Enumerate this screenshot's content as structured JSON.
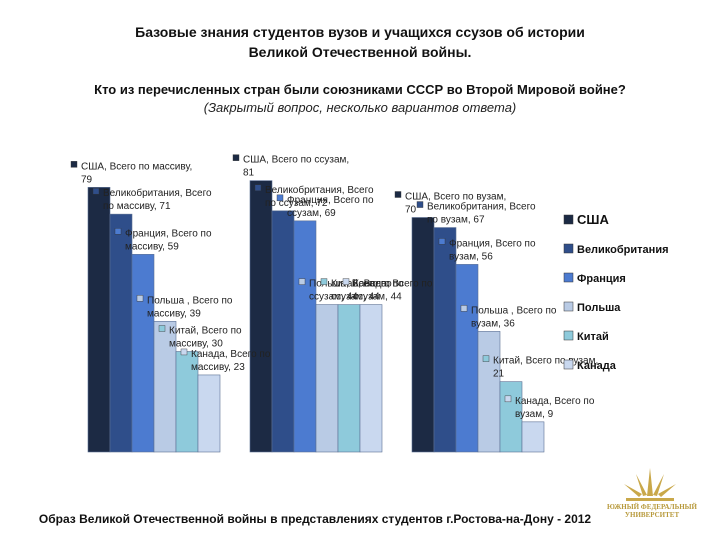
{
  "page": {
    "title_line1": "Базовые знания  студентов вузов  и учащихся ссузов об истории",
    "title_line2": "Великой Отечественной войны.",
    "question": "Кто из перечисленных стран были союзниками СССР во Второй Мировой войне?",
    "subquestion": "(Закрытый вопрос, несколько вариантов ответа)",
    "footer": "Образ Великой Отечественной войны в представлениях студентов г.Ростова-на-Дону - 2012",
    "logo_text": "ЮЖНЫЙ ФЕДЕРАЛЬНЫЙ УНИВЕРСИТЕТ"
  },
  "chart_data": {
    "type": "bar",
    "title": "Кто из перечисленных стран были союзниками СССР во Второй Мировой войне?",
    "categories": [
      "Всего по массиву",
      "Всего по ссузам",
      "Всего по вузам"
    ],
    "ylim": [
      0,
      100
    ],
    "grid": false,
    "legend_position": "right",
    "series": [
      {
        "name": "США",
        "color": "#1c2a44",
        "values": [
          79,
          81,
          70
        ],
        "labels": [
          "США, Всего по массиву, 79",
          "США, Всего по ссузам, 81",
          "США, Всего по вузам, 70"
        ]
      },
      {
        "name": "Великобритания",
        "color": "#2f4e8a",
        "values": [
          71,
          72,
          67
        ],
        "labels": [
          "Великобритания, Всего по массиву, 71",
          "Великобритания, Всего по ссузам, 72",
          "Великобритания, Всего по вузам, 67"
        ]
      },
      {
        "name": "Франция",
        "color": "#4c7bd0",
        "values": [
          59,
          69,
          56
        ],
        "labels": [
          "Франция, Всего по массиву, 59",
          "Франция, Всего по ссузам, 69",
          "Франция, Всего по вузам, 56"
        ]
      },
      {
        "name": "Польша",
        "color": "#b9cbe5",
        "values": [
          39,
          44,
          36
        ],
        "labels": [
          "Польша , Всего по массиву, 39",
          "Польша, Всего по ссузам, 44",
          "Польша , Всего по вузам, 36"
        ]
      },
      {
        "name": "Китай",
        "color": "#8ecadb",
        "values": [
          30,
          44,
          21
        ],
        "labels": [
          "Китай, Всего по массиву, 30",
          "Китай, Всего по ссузам, 44",
          "Китай, Всего по вузам, 21"
        ]
      },
      {
        "name": "Канада",
        "color": "#c9d8ef",
        "values": [
          23,
          44,
          9
        ],
        "labels": [
          "Канада, Всего по массиву, 23",
          "Канада, Всего по ссузам, 44",
          "Канада, Всего по вузам, 9"
        ]
      }
    ]
  }
}
